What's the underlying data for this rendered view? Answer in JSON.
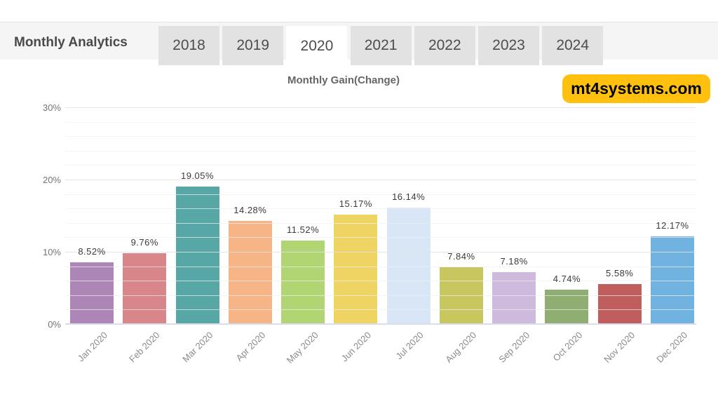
{
  "header": {
    "title": "Monthly Analytics",
    "tabs": [
      {
        "label": "2018",
        "active": false
      },
      {
        "label": "2019",
        "active": false
      },
      {
        "label": "2020",
        "active": true
      },
      {
        "label": "2021",
        "active": false
      },
      {
        "label": "2022",
        "active": false
      },
      {
        "label": "2023",
        "active": false
      },
      {
        "label": "2024",
        "active": false
      }
    ]
  },
  "watermark": {
    "label": "mt4systems.com",
    "bg_color": "#FFC10D",
    "text_color": "#000000"
  },
  "chart_data": {
    "type": "bar",
    "title": "Monthly Gain(Change)",
    "categories": [
      "Jan 2020",
      "Feb 2020",
      "Mar 2020",
      "Apr 2020",
      "May 2020",
      "Jun 2020",
      "Jul 2020",
      "Aug 2020",
      "Sep 2020",
      "Oct 2020",
      "Nov 2020",
      "Dec 2020"
    ],
    "values": [
      8.52,
      9.76,
      19.05,
      14.28,
      11.52,
      15.17,
      16.14,
      7.84,
      7.18,
      4.74,
      5.58,
      12.17
    ],
    "value_labels": [
      "8.52%",
      "9.76%",
      "19.05%",
      "14.28%",
      "11.52%",
      "15.17%",
      "16.14%",
      "7.84%",
      "7.18%",
      "4.74%",
      "5.58%",
      "12.17%"
    ],
    "bar_colors": [
      "#AB86B6",
      "#D8868A",
      "#58A7A7",
      "#F7B587",
      "#B2D573",
      "#EDD463",
      "#D9E6F5",
      "#C8C75F",
      "#CDBADC",
      "#90AE72",
      "#C05D5D",
      "#70B2E0"
    ],
    "xlabel": "",
    "ylabel": "",
    "ylim": [
      0,
      30
    ],
    "y_ticks": [
      {
        "label": "0%",
        "value": 0
      },
      {
        "label": "10%",
        "value": 10
      },
      {
        "label": "20%",
        "value": 20
      },
      {
        "label": "30%",
        "value": 30
      }
    ],
    "grid": {
      "major_every_pct": 10,
      "minor_every_pct": 2
    },
    "legend": "none",
    "baseline_color": "#d9ddee"
  }
}
